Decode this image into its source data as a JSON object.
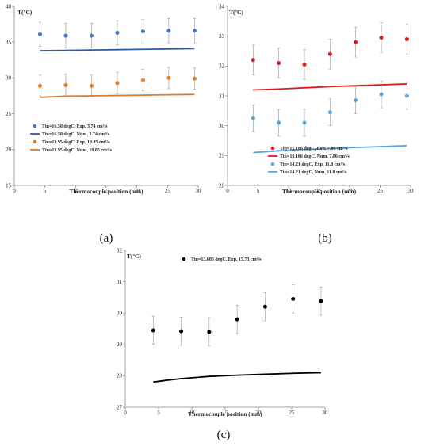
{
  "chart_data": [
    {
      "type": "scatter",
      "panel_label": "(a)",
      "ylabel": "T(°C)",
      "xlabel": "Thermocouple position (mm)",
      "xlim": [
        0,
        30
      ],
      "ylim": [
        15,
        40
      ],
      "xticks": [
        0,
        5,
        10,
        15,
        20,
        25,
        30
      ],
      "yticks": [
        15,
        20,
        25,
        30,
        35,
        40
      ],
      "legend_position": "lower-left",
      "series": [
        {
          "name": "Tin=16.58 degC, Exp, 3.74 cm³/s",
          "kind": "points",
          "color": "#4472c4",
          "x": [
            4.2,
            8.4,
            12.6,
            16.8,
            21,
            25.2,
            29.4
          ],
          "y": [
            36.1,
            35.9,
            35.9,
            36.3,
            36.5,
            36.6,
            36.6
          ],
          "err": [
            1.7,
            1.7,
            1.7,
            1.7,
            1.7,
            1.7,
            1.7
          ]
        },
        {
          "name": "Tin=16.58 degC, Num, 3.74 cm³/s",
          "kind": "line",
          "color": "#2e5fa3",
          "x": [
            4.2,
            8.4,
            12.6,
            16.8,
            21,
            25.2,
            29.4
          ],
          "y": [
            33.8,
            33.85,
            33.9,
            33.95,
            34.0,
            34.05,
            34.1
          ]
        },
        {
          "name": "Tin=13.95 degC, Exp, 19.85 cm³/s",
          "kind": "points",
          "color": "#e07b2a",
          "x": [
            4.2,
            8.4,
            12.6,
            16.8,
            21,
            25.2,
            29.4
          ],
          "y": [
            28.9,
            29.0,
            28.9,
            29.3,
            29.7,
            30.0,
            29.9
          ],
          "err": [
            1.5,
            1.5,
            1.5,
            1.5,
            1.5,
            1.5,
            1.5
          ]
        },
        {
          "name": "Tin=13.95 degC, Num, 19.85 cm³/s",
          "kind": "line",
          "color": "#e07b2a",
          "x": [
            4.2,
            8.4,
            12.6,
            16.8,
            21,
            25.2,
            29.4
          ],
          "y": [
            27.3,
            27.45,
            27.5,
            27.55,
            27.6,
            27.65,
            27.7
          ]
        }
      ]
    },
    {
      "type": "scatter",
      "panel_label": "(b)",
      "ylabel": "T(ºC)",
      "xlabel": "Thermocouple position (mm)",
      "xlim": [
        0,
        30
      ],
      "ylim": [
        28,
        34
      ],
      "xticks": [
        0,
        5,
        10,
        15,
        20,
        25,
        30
      ],
      "yticks": [
        28,
        29,
        30,
        31,
        32,
        33,
        34
      ],
      "legend_position": "lower-right",
      "series": [
        {
          "name": "Tin=15.166 degC, Exp, 7.86 cm³/s",
          "kind": "points",
          "color": "#e31a1c",
          "x": [
            4.2,
            8.4,
            12.6,
            16.8,
            21,
            25.2,
            29.4
          ],
          "y": [
            32.2,
            32.1,
            32.05,
            32.4,
            32.8,
            32.95,
            32.9
          ],
          "err": [
            0.5,
            0.5,
            0.5,
            0.5,
            0.5,
            0.5,
            0.5
          ]
        },
        {
          "name": "Tin=15.166 degC, Num, 7.86 cm³/s",
          "kind": "line",
          "color": "#e31a1c",
          "x": [
            4.2,
            8.4,
            12.6,
            16.8,
            21,
            25.2,
            29.4
          ],
          "y": [
            31.2,
            31.23,
            31.27,
            31.31,
            31.34,
            31.37,
            31.4
          ]
        },
        {
          "name": "Tin=14.21 degC, Exp, 11.8 cm³/s",
          "kind": "points",
          "color": "#5aa6dc",
          "x": [
            4.2,
            8.4,
            12.6,
            16.8,
            21,
            25.2,
            29.4
          ],
          "y": [
            30.25,
            30.1,
            30.1,
            30.45,
            30.85,
            31.05,
            31.0
          ],
          "err": [
            0.45,
            0.45,
            0.45,
            0.45,
            0.45,
            0.45,
            0.45
          ]
        },
        {
          "name": "Tin=14.21 degC, Num, 11.8 cm³/s",
          "kind": "line",
          "color": "#5aa6dc",
          "x": [
            4.2,
            8.4,
            12.6,
            16.8,
            21,
            25.2,
            29.4
          ],
          "y": [
            29.1,
            29.16,
            29.2,
            29.24,
            29.27,
            29.3,
            29.33
          ]
        }
      ]
    },
    {
      "type": "scatter",
      "panel_label": "(c)",
      "ylabel": "T(ºC)",
      "xlabel": "Thermocouple position (mm)",
      "xlim": [
        0,
        30
      ],
      "ylim": [
        27,
        32
      ],
      "xticks": [
        0,
        5,
        10,
        15,
        20,
        25,
        30
      ],
      "yticks": [
        27,
        28,
        29,
        30,
        31,
        32
      ],
      "legend_position": "top-left",
      "series": [
        {
          "name": "Tin=13.685 degC, Exp, 15.73 cm³/s",
          "kind": "points",
          "color": "#000000",
          "x": [
            4.2,
            8.4,
            12.6,
            16.8,
            21,
            25.2,
            29.4
          ],
          "y": [
            29.45,
            29.42,
            29.4,
            29.8,
            30.2,
            30.45,
            30.38
          ],
          "err": [
            0.45,
            0.45,
            0.45,
            0.45,
            0.45,
            0.45,
            0.45
          ]
        },
        {
          "name": "",
          "kind": "line",
          "color": "#000000",
          "x": [
            4.2,
            6.3,
            8.4,
            12.6,
            16.8,
            21,
            25.2,
            29.4
          ],
          "y": [
            27.8,
            27.86,
            27.91,
            27.98,
            28.02,
            28.05,
            28.08,
            28.1
          ]
        }
      ]
    }
  ]
}
